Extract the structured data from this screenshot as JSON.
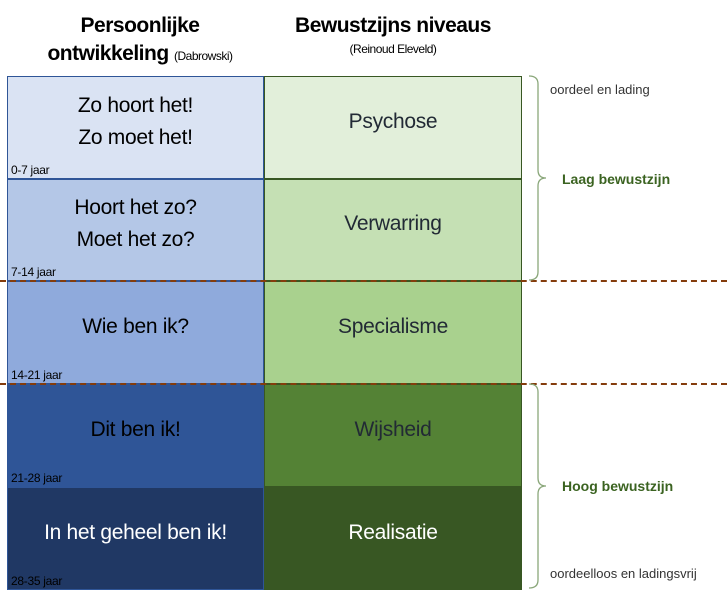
{
  "header": {
    "left_title_line1": "Persoonlijke",
    "left_title_line2": "ontwikkeling",
    "left_author": "(Dabrowski)",
    "right_title": "Bewustzijns niveaus",
    "right_author": "(Reinoud Eleveld)"
  },
  "rows": [
    {
      "left_line1": "Zo hoort het!",
      "left_line2": "Zo moet het!",
      "age": "0-7 jaar",
      "right": "Psychose",
      "left_color": "#dae3f3",
      "right_color": "#e2efda"
    },
    {
      "left_line1": "Hoort het zo?",
      "left_line2": "Moet het zo?",
      "age": "7-14 jaar",
      "right": "Verwarring",
      "left_color": "#b4c7e7",
      "right_color": "#c5e0b4"
    },
    {
      "left_line1": "Wie ben ik?",
      "left_line2": "",
      "age": "14-21 jaar",
      "right": "Specialisme",
      "left_color": "#8faadc",
      "right_color": "#a9d18e"
    },
    {
      "left_line1": "Dit ben ik!",
      "left_line2": "",
      "age": "21-28 jaar",
      "right": "Wijsheid",
      "left_color": "#2f5597",
      "right_color": "#548235"
    },
    {
      "left_line1": "In het geheel ben ik!",
      "left_line2": "",
      "age": "28-35 jaar",
      "right": "Realisatie",
      "left_color": "#203864",
      "right_color": "#385723"
    }
  ],
  "annotations": {
    "top_note": "oordeel en lading",
    "low_group": "Laag bewustzijn",
    "high_group": "Hoog bewustzijn",
    "bottom_note": "oordeelloos en ladingsvrij"
  },
  "colors": {
    "divider": "#843c0c",
    "group_label": "#3b6321",
    "brace": "#8aa77a"
  }
}
